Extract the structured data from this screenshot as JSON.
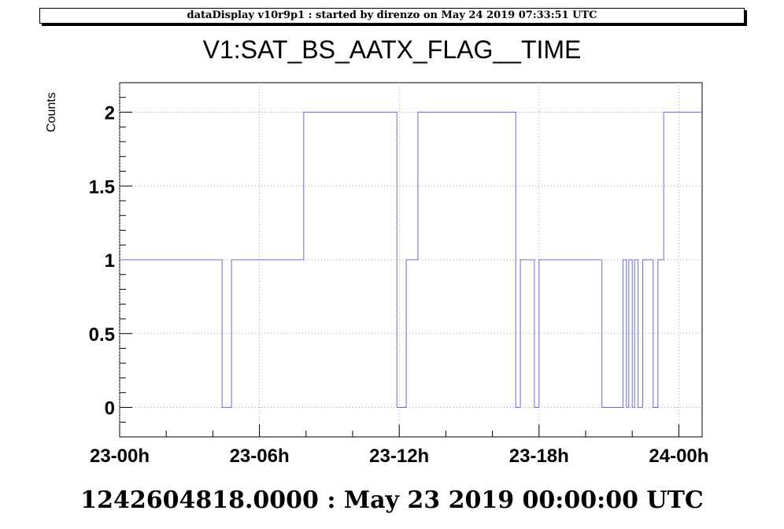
{
  "header": "dataDisplay v10r9p1 : started by direnzo on May 24 2019 07:33:51 UTC",
  "footer": "1242604818.0000 : May 23 2019 00:00:00 UTC",
  "chart_data": {
    "type": "line",
    "step": true,
    "title": "V1:SAT_BS_AATX_FLAG__TIME",
    "xlabel": "",
    "ylabel": "Counts",
    "xlim": [
      0,
      25
    ],
    "ylim": [
      -0.2,
      2.2
    ],
    "grid": true,
    "x_unit": "hours since May 23 2019 00:00 UTC",
    "y_ticks": [
      {
        "value": 0,
        "label": "0"
      },
      {
        "value": 0.5,
        "label": "0.5"
      },
      {
        "value": 1,
        "label": "1"
      },
      {
        "value": 1.5,
        "label": "1.5"
      },
      {
        "value": 2,
        "label": "2"
      }
    ],
    "x_ticks": [
      {
        "value": 0,
        "label": "23-00h"
      },
      {
        "value": 6,
        "label": "23-06h"
      },
      {
        "value": 12,
        "label": "23-12h"
      },
      {
        "value": 18,
        "label": "23-18h"
      },
      {
        "value": 24,
        "label": "24-00h"
      }
    ],
    "series": [
      {
        "name": "",
        "color": "#6a6ad8",
        "x": [
          0,
          4.4,
          4.8,
          7.9,
          11.9,
          12.3,
          12.8,
          17.0,
          17.2,
          17.8,
          18.0,
          20.7,
          21.6,
          21.75,
          21.85,
          22.0,
          22.1,
          22.25,
          22.45,
          22.9,
          23.1,
          23.35,
          25
        ],
        "y": [
          1,
          0,
          1,
          2,
          0,
          1,
          2,
          0,
          1,
          0,
          1,
          0,
          1,
          0,
          1,
          0,
          1,
          0,
          1,
          0,
          1,
          2,
          2
        ]
      }
    ]
  }
}
